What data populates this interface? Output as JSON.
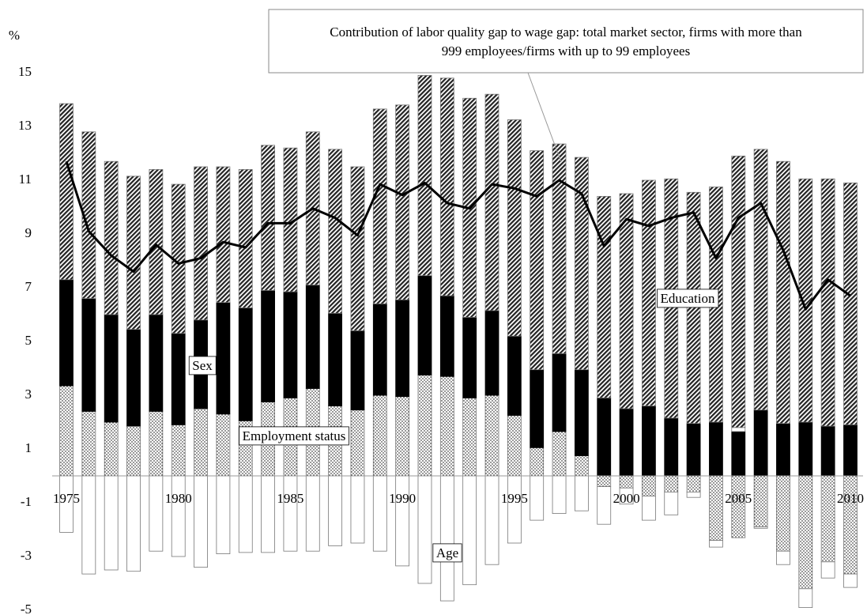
{
  "chart_data": {
    "type": "bar",
    "stacked": true,
    "y_unit_label": "%",
    "categories": [
      "1975",
      null,
      null,
      null,
      null,
      "1980",
      null,
      null,
      null,
      null,
      "1985",
      null,
      null,
      null,
      null,
      "1990",
      null,
      null,
      null,
      null,
      "1995",
      null,
      null,
      null,
      null,
      "2000",
      null,
      null,
      null,
      null,
      "2005",
      null,
      null,
      null,
      null,
      "2010"
    ],
    "series": [
      {
        "name": "Employment status",
        "pattern": "dots",
        "color": "#000000",
        "values": [
          3.35,
          2.4,
          2.0,
          1.85,
          2.4,
          1.9,
          2.5,
          2.3,
          2.05,
          2.75,
          2.9,
          3.25,
          2.6,
          2.45,
          3.0,
          2.95,
          3.75,
          3.7,
          2.9,
          3.0,
          2.25,
          1.05,
          1.65,
          0.75,
          -0.4,
          -0.45,
          -0.75,
          -0.6,
          -0.6,
          -2.4,
          -2.3,
          -1.9,
          -2.8,
          -4.2,
          -3.2,
          -3.65
        ]
      },
      {
        "name": "Sex",
        "pattern": "solid",
        "color": "#000000",
        "values": [
          3.95,
          4.2,
          4.0,
          3.6,
          3.6,
          3.4,
          3.3,
          4.15,
          4.2,
          4.15,
          3.95,
          3.85,
          3.45,
          2.95,
          3.4,
          3.6,
          3.7,
          3.0,
          3.0,
          3.15,
          2.95,
          2.9,
          2.9,
          3.2,
          2.9,
          2.5,
          2.6,
          2.15,
          1.95,
          2.0,
          1.65,
          2.45,
          1.95,
          2.0,
          1.85,
          1.9
        ]
      },
      {
        "name": "Age",
        "pattern": "none",
        "color": "#ffffff",
        "values": [
          -2.1,
          -3.65,
          -3.5,
          -3.55,
          -2.8,
          -3.0,
          -3.4,
          -2.9,
          -2.85,
          -2.85,
          -2.8,
          -2.8,
          -2.6,
          -2.5,
          -2.8,
          -3.35,
          -4.0,
          -4.65,
          -4.05,
          -3.3,
          -2.5,
          -1.65,
          -1.4,
          -1.3,
          -1.4,
          -0.6,
          -0.9,
          -0.85,
          -0.2,
          -0.25,
          0.15,
          -0.05,
          -0.5,
          -0.7,
          -0.6,
          -0.5
        ]
      },
      {
        "name": "Education",
        "pattern": "hatch",
        "color": "#000000",
        "values": [
          6.55,
          6.2,
          5.7,
          5.7,
          5.4,
          5.55,
          5.7,
          5.05,
          5.15,
          5.4,
          5.35,
          5.7,
          6.1,
          6.1,
          7.25,
          7.25,
          7.45,
          8.1,
          8.15,
          8.05,
          8.05,
          8.15,
          7.8,
          7.9,
          7.5,
          8.0,
          8.4,
          8.9,
          8.6,
          8.75,
          10.1,
          9.7,
          9.75,
          9.05,
          9.2,
          9.0
        ]
      }
    ],
    "line": {
      "color": "#000000",
      "values": [
        11.7,
        9.1,
        8.2,
        7.6,
        8.6,
        7.9,
        8.1,
        8.7,
        8.5,
        9.4,
        9.4,
        9.95,
        9.6,
        8.95,
        10.85,
        10.45,
        10.9,
        10.15,
        9.95,
        10.85,
        10.7,
        10.4,
        11.0,
        10.5,
        8.55,
        9.55,
        9.3,
        9.6,
        9.8,
        8.1,
        9.6,
        10.15,
        8.4,
        6.2,
        7.3,
        6.7
      ]
    },
    "callout": [
      "Contribution of labor quality gap to wage gap: total market sector, firms with more than",
      "999 employees/firms with up to 99 employees"
    ],
    "ylim": [
      -5,
      15
    ],
    "yticks": [
      -5,
      -3,
      -1,
      1,
      3,
      5,
      7,
      9,
      11,
      13,
      15
    ],
    "grid": false
  }
}
